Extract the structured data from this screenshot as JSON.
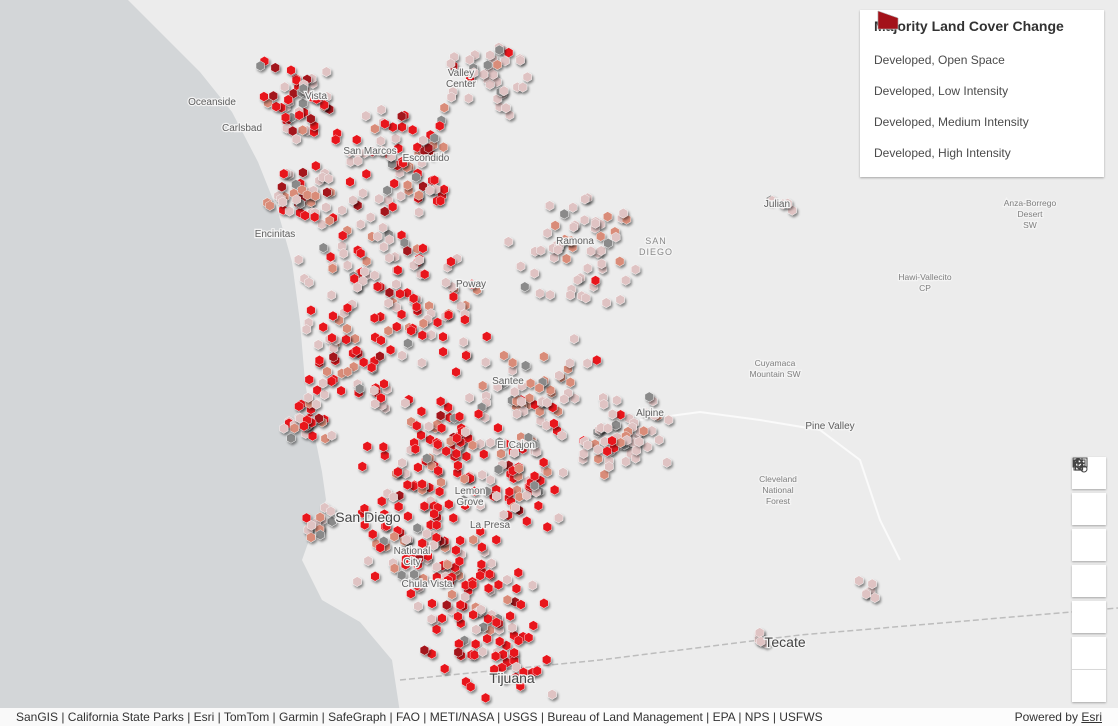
{
  "legend": {
    "title": "Majority Land Cover Change",
    "items": [
      {
        "label": "Developed, Open Space",
        "color": "#dfc3c3"
      },
      {
        "label": "Developed, Low Intensity",
        "color": "#d98c79"
      },
      {
        "label": "Developed, Medium Intensity",
        "color": "#e8121b"
      },
      {
        "label": "Developed, High Intensity",
        "color": "#a3121a"
      }
    ]
  },
  "places": [
    "Oceanside",
    "Vista",
    "Carlsbad",
    "San Marcos",
    "Escondido",
    "Valley Center",
    "Encinitas",
    "Ramona",
    "SAN DIEGO",
    "Poway",
    "Julian",
    "Anza-Borrego Desert SW",
    "Hawi-Vallecito CP",
    "Santee",
    "Alpine",
    "Pine Valley",
    "Cuyamaca Mountain SW",
    "El Cajon",
    "Lemon Grove",
    "La Presa",
    "San Diego",
    "National City",
    "Chula Vista",
    "Cleveland National Forest",
    "Tecate",
    "Tijuana"
  ],
  "attribution": {
    "sources": "SanGIS | California State Parks | Esri | TomTom | Garmin | SafeGraph | FAO | METI/NASA | USGS | Bureau of Land Management | EPA | NPS | USFWS",
    "powered_by": "Powered by",
    "link": "Esri"
  }
}
